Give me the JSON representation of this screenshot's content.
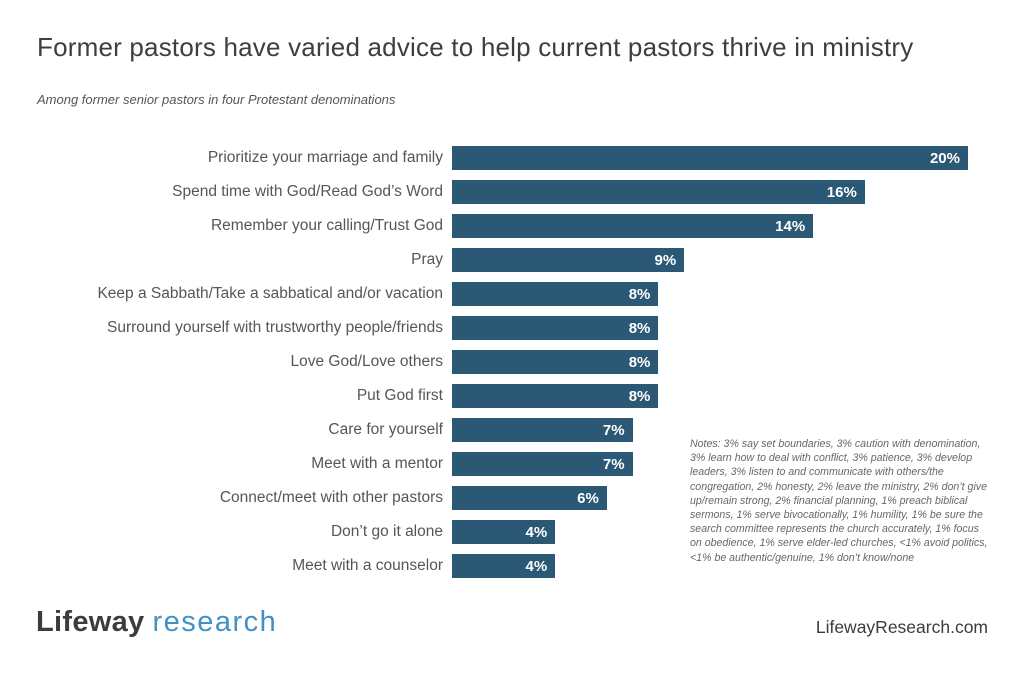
{
  "page": {
    "title": "Former pastors have varied advice to help current pastors thrive in ministry",
    "subtitle": "Among former senior pastors in four Protestant denominations"
  },
  "chart_data": {
    "type": "bar",
    "orientation": "horizontal",
    "title": "Former pastors have varied advice to help current pastors thrive in ministry",
    "xlabel": "",
    "ylabel": "",
    "xlim": [
      0,
      20.5
    ],
    "grid": false,
    "legend": "none",
    "value_suffix": "%",
    "bar_color": "#2b5875",
    "value_label_color": "#ffffff",
    "categories": [
      "Prioritize your marriage and family",
      "Spend time with God/Read God’s Word",
      "Remember your calling/Trust God",
      "Pray",
      "Keep a Sabbath/Take a sabbatical and/or vacation",
      "Surround yourself with trustworthy people/friends",
      "Love God/Love others",
      "Put God first",
      "Care for yourself",
      "Meet with a mentor",
      "Connect/meet with other pastors",
      "Don’t go it alone",
      "Meet with a counselor"
    ],
    "values": [
      20,
      16,
      14,
      9,
      8,
      8,
      8,
      8,
      7,
      7,
      6,
      4,
      4
    ]
  },
  "notes": "Notes: 3% say set boundaries, 3% caution with denomination, 3% learn how to deal with conflict, 3% patience, 3% develop leaders, 3% listen to and communicate with others/the congregation, 2% honesty, 2% leave the ministry, 2% don’t give up/remain strong, 2% financial planning, 1% preach biblical sermons, 1% serve bivocationally, 1% humility, 1% be sure the search committee represents the church accurately, 1% focus on obedience, 1% serve elder-led churches, <1% avoid politics, <1% be authentic/genuine, 1% don’t know/none",
  "footer": {
    "logo_primary": "Lifeway",
    "logo_secondary": "research",
    "logo_primary_color": "#3b3c3e",
    "logo_secondary_color": "#4190c6",
    "website": "LifewayResearch.com"
  }
}
